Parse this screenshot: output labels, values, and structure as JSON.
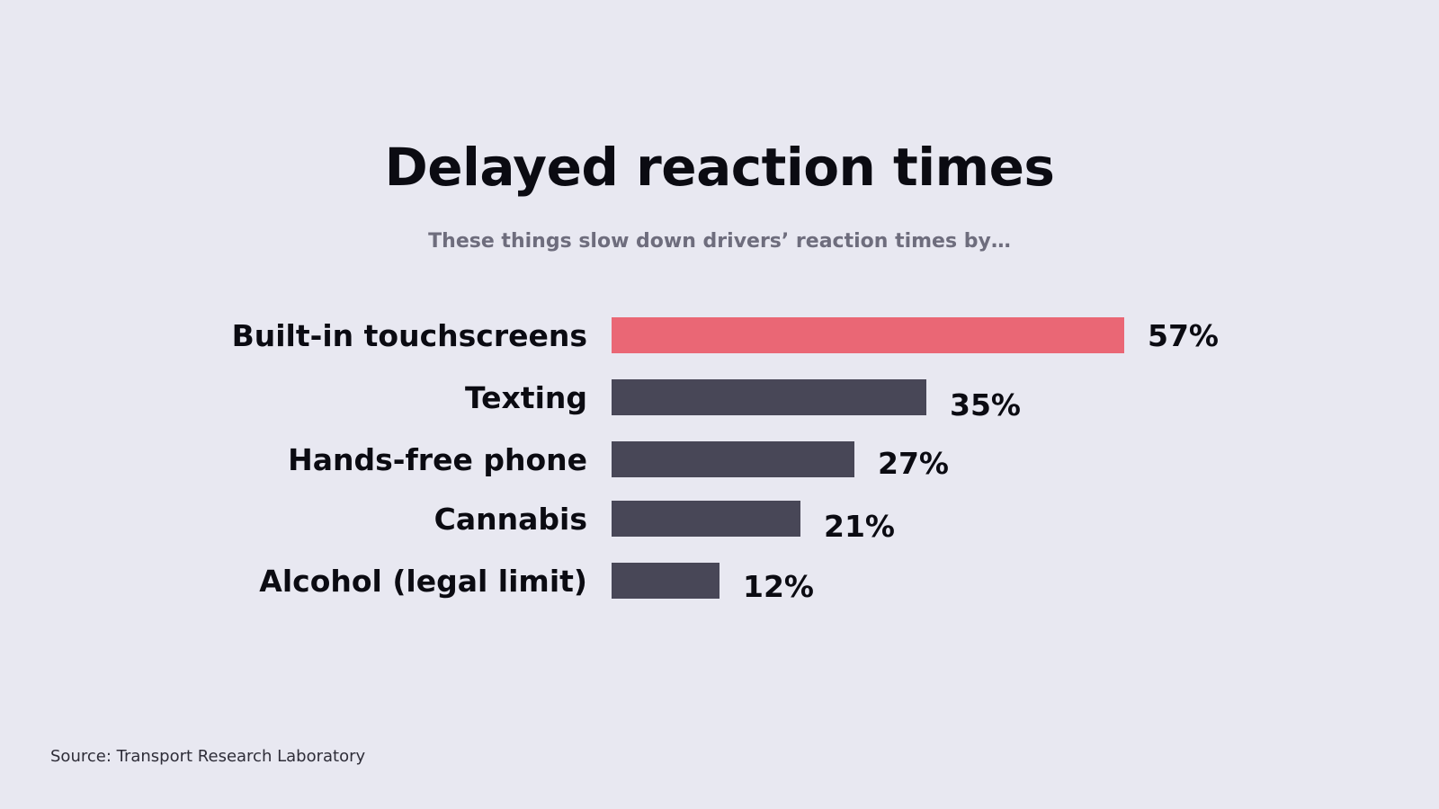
{
  "title": "Delayed reaction times",
  "subtitle": "These things slow down drivers’ reaction times by…",
  "source": "Source: Transport Research Laboratory",
  "colors": {
    "background": "#e8e8f1",
    "highlight_bar": "#ea6775",
    "default_bar": "#484757",
    "text": "#0b0b12",
    "subtitle": "#6e6d7d"
  },
  "chart_data": {
    "type": "bar",
    "orientation": "horizontal",
    "title": "Delayed reaction times",
    "subtitle": "These things slow down drivers’ reaction times by…",
    "categories": [
      "Built-in touchscreens",
      "Texting",
      "Hands-free phone",
      "Cannabis",
      "Alcohol (legal limit)"
    ],
    "values": [
      57,
      35,
      27,
      21,
      12
    ],
    "value_labels": [
      "57%",
      "35%",
      "27%",
      "21%",
      "12%"
    ],
    "unit": "%",
    "highlighted_category": "Built-in touchscreens",
    "xlabel": "",
    "ylabel": "",
    "grid": false,
    "legend": "none"
  }
}
